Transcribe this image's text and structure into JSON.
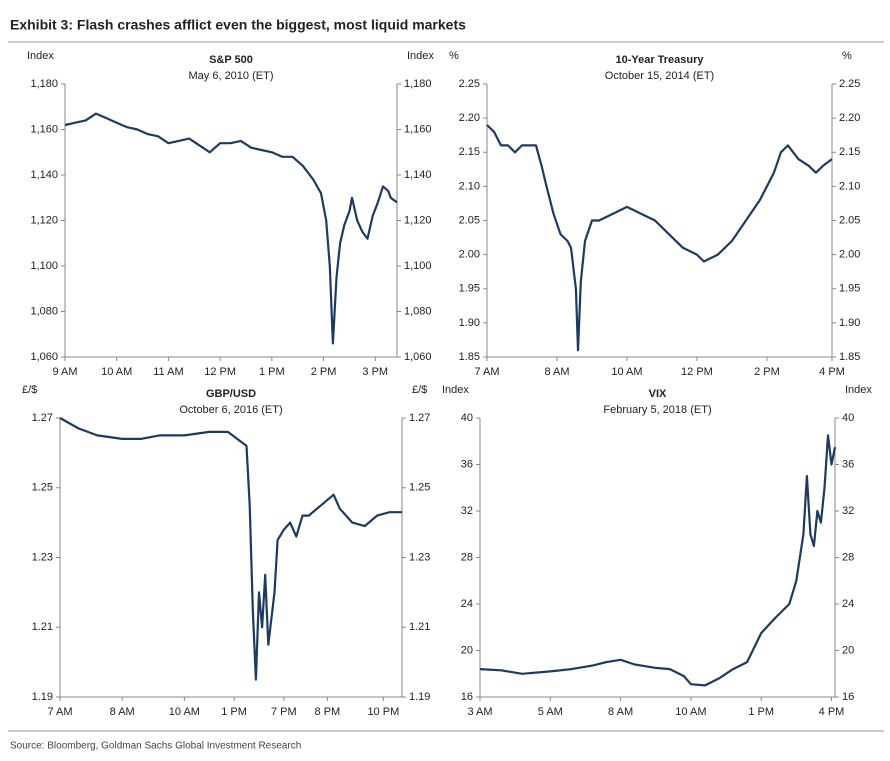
{
  "title": "Exhibit 3: Flash crashes afflict even the biggest, most liquid markets",
  "source": "Source: Bloomberg, Goldman Sachs Global Investment Research",
  "chart_data": [
    {
      "type": "line",
      "title": "S&P 500",
      "subtitle": "May 6, 2010 (ET)",
      "ylabel": "Index",
      "y2label": "Index",
      "color": "#1f3a60",
      "ylim": [
        1060,
        1180
      ],
      "yticks": [
        {
          "value": 1060,
          "label": "1,060"
        },
        {
          "value": 1080,
          "label": "1,080"
        },
        {
          "value": 1100,
          "label": "1,100"
        },
        {
          "value": 1120,
          "label": "1,120"
        },
        {
          "value": 1140,
          "label": "1,140"
        },
        {
          "value": 1160,
          "label": "1,160"
        },
        {
          "value": 1180,
          "label": "1,180"
        }
      ],
      "xlim": [
        0,
        6.42
      ],
      "xticks": [
        {
          "value": 0,
          "label": "9 AM"
        },
        {
          "value": 1,
          "label": "10 AM"
        },
        {
          "value": 2,
          "label": "11 AM"
        },
        {
          "value": 3,
          "label": "12 PM"
        },
        {
          "value": 4,
          "label": "1 PM"
        },
        {
          "value": 5,
          "label": "2 PM"
        },
        {
          "value": 6,
          "label": "3 PM"
        }
      ],
      "x": [
        0,
        0.2,
        0.4,
        0.6,
        0.8,
        1.0,
        1.2,
        1.4,
        1.6,
        1.8,
        2.0,
        2.2,
        2.4,
        2.6,
        2.8,
        3.0,
        3.2,
        3.4,
        3.6,
        3.8,
        4.0,
        4.2,
        4.4,
        4.6,
        4.8,
        4.95,
        5.05,
        5.12,
        5.18,
        5.25,
        5.32,
        5.4,
        5.5,
        5.55,
        5.65,
        5.75,
        5.85,
        5.95,
        6.05,
        6.15,
        6.25,
        6.3,
        6.42
      ],
      "values": [
        1162,
        1163,
        1164,
        1167,
        1165,
        1163,
        1161,
        1160,
        1158,
        1157,
        1154,
        1155,
        1156,
        1153,
        1150,
        1154,
        1154,
        1155,
        1152,
        1151,
        1150,
        1148,
        1148,
        1144,
        1138,
        1132,
        1120,
        1100,
        1066,
        1095,
        1110,
        1118,
        1124,
        1130,
        1120,
        1115,
        1112,
        1122,
        1128,
        1135,
        1133,
        1130,
        1128
      ]
    },
    {
      "type": "line",
      "title": "10-Year Treasury",
      "subtitle": "October 15, 2014 (ET)",
      "ylabel": "%",
      "y2label": "%",
      "color": "#1f3a60",
      "ylim": [
        1.85,
        2.25
      ],
      "yticks": [
        1.85,
        {
          "value": 1.9,
          "label": "1.90"
        },
        1.95,
        {
          "value": 2,
          "label": "2.00"
        },
        2.05,
        {
          "value": 2.1,
          "label": "2.10"
        },
        2.15,
        {
          "value": 2.2,
          "label": "2.20"
        },
        2.25
      ],
      "xlim": [
        0,
        4.93
      ],
      "xticks": [
        {
          "value": 0,
          "label": "7 AM"
        },
        {
          "value": 1,
          "label": "8 AM"
        },
        {
          "value": 2,
          "label": "10 AM"
        },
        {
          "value": 3,
          "label": "12 PM"
        },
        {
          "value": 4,
          "label": "2 PM"
        },
        {
          "value": 4.93,
          "label": "4 PM"
        }
      ],
      "x": [
        0,
        0.1,
        0.2,
        0.3,
        0.4,
        0.5,
        0.6,
        0.7,
        0.78,
        0.85,
        0.95,
        1.05,
        1.15,
        1.2,
        1.27,
        1.3,
        1.34,
        1.4,
        1.5,
        1.6,
        1.8,
        2.0,
        2.2,
        2.4,
        2.6,
        2.8,
        3.0,
        3.1,
        3.3,
        3.5,
        3.7,
        3.9,
        4.1,
        4.2,
        4.3,
        4.45,
        4.6,
        4.7,
        4.8,
        4.93
      ],
      "values": [
        2.19,
        2.18,
        2.16,
        2.16,
        2.15,
        2.16,
        2.16,
        2.16,
        2.13,
        2.1,
        2.06,
        2.03,
        2.02,
        2.01,
        1.95,
        1.86,
        1.96,
        2.02,
        2.05,
        2.05,
        2.06,
        2.07,
        2.06,
        2.05,
        2.03,
        2.01,
        2.0,
        1.99,
        2.0,
        2.02,
        2.05,
        2.08,
        2.12,
        2.15,
        2.16,
        2.14,
        2.13,
        2.12,
        2.13,
        2.14
      ]
    },
    {
      "type": "line",
      "title": "GBP/USD",
      "subtitle": "October 6, 2016 (ET)",
      "ylabel": "£/$",
      "y2label": "£/$",
      "color": "#1f3a60",
      "ylim": [
        1.19,
        1.27
      ],
      "yticks": [
        1.19,
        1.21,
        1.23,
        1.25,
        1.27
      ],
      "xlim": [
        0,
        5.5
      ],
      "xticks": [
        {
          "value": 0,
          "label": "7 AM"
        },
        {
          "value": 1,
          "label": "8 AM"
        },
        {
          "value": 2,
          "label": "10 AM"
        },
        {
          "value": 2.8,
          "label": "1 PM"
        },
        {
          "value": 3.6,
          "label": "7 PM"
        },
        {
          "value": 4.3,
          "label": "8 PM"
        },
        {
          "value": 5.2,
          "label": "10 PM"
        }
      ],
      "x": [
        0,
        0.3,
        0.6,
        1.0,
        1.3,
        1.6,
        2.0,
        2.4,
        2.7,
        2.85,
        3.0,
        3.05,
        3.1,
        3.15,
        3.2,
        3.25,
        3.3,
        3.35,
        3.45,
        3.5,
        3.6,
        3.7,
        3.8,
        3.9,
        4.0,
        4.2,
        4.4,
        4.5,
        4.7,
        4.9,
        5.1,
        5.3,
        5.5
      ],
      "values": [
        1.27,
        1.267,
        1.265,
        1.264,
        1.264,
        1.265,
        1.265,
        1.266,
        1.266,
        1.264,
        1.262,
        1.245,
        1.215,
        1.195,
        1.22,
        1.21,
        1.225,
        1.205,
        1.22,
        1.235,
        1.238,
        1.24,
        1.236,
        1.242,
        1.242,
        1.245,
        1.248,
        1.244,
        1.24,
        1.239,
        1.242,
        1.243,
        1.243
      ]
    },
    {
      "type": "line",
      "title": "VIX",
      "subtitle": "February 5, 2018 (ET)",
      "ylabel": "Index",
      "y2label": "Index",
      "color": "#1f3a60",
      "ylim": [
        16,
        40
      ],
      "yticks": [
        16,
        20,
        24,
        28,
        32,
        36,
        40
      ],
      "xlim": [
        0,
        5.05
      ],
      "xticks": [
        {
          "value": 0,
          "label": "3 AM"
        },
        {
          "value": 1,
          "label": "5 AM"
        },
        {
          "value": 2,
          "label": "8 AM"
        },
        {
          "value": 3,
          "label": "10 AM"
        },
        {
          "value": 4,
          "label": "1 PM"
        },
        {
          "value": 5,
          "label": "4 PM"
        }
      ],
      "x": [
        0,
        0.3,
        0.6,
        1.0,
        1.3,
        1.6,
        1.8,
        2.0,
        2.2,
        2.5,
        2.7,
        2.9,
        3.0,
        3.2,
        3.4,
        3.6,
        3.8,
        4.0,
        4.2,
        4.4,
        4.5,
        4.6,
        4.65,
        4.7,
        4.75,
        4.8,
        4.85,
        4.9,
        4.95,
        5.0,
        5.05
      ],
      "values": [
        18.4,
        18.3,
        18.0,
        18.2,
        18.4,
        18.7,
        19.0,
        19.2,
        18.8,
        18.5,
        18.4,
        17.8,
        17.1,
        17.0,
        17.6,
        18.4,
        19.0,
        21.5,
        22.8,
        24,
        26,
        30,
        35,
        30,
        29,
        32,
        31,
        34,
        38.5,
        36,
        37.5
      ]
    }
  ]
}
